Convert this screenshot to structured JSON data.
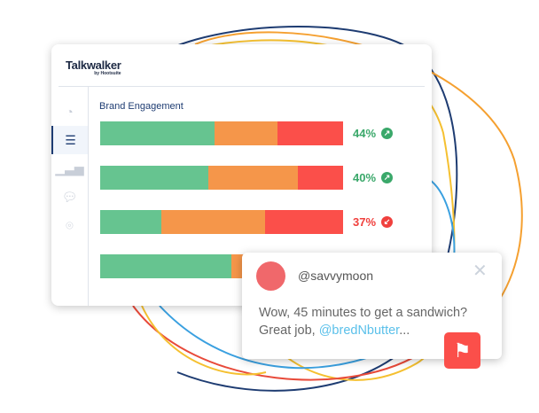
{
  "app": {
    "logo": "Talkwalker",
    "logo_sub": "by Hootsuite"
  },
  "sidebar": {
    "items": [
      {
        "icon": "dashboard-icon"
      },
      {
        "icon": "search-list-icon",
        "active": true
      },
      {
        "icon": "bar-chart-icon"
      },
      {
        "icon": "chat-icon"
      },
      {
        "icon": "location-pin-icon"
      }
    ]
  },
  "main": {
    "title": "Brand Engagement",
    "rows": [
      {
        "positive": 47,
        "neutral": 26,
        "negative": 27,
        "pct": "44%",
        "trend": "up",
        "color": "#3aa86a"
      },
      {
        "positive": 44.5,
        "neutral": 37,
        "negative": 18.5,
        "pct": "40%",
        "trend": "up",
        "color": "#3aa86a"
      },
      {
        "positive": 25,
        "neutral": 43,
        "negative": 32,
        "pct": "37%",
        "trend": "down",
        "color": "#f0403d"
      },
      {
        "positive": 54,
        "neutral": 46,
        "negative": 0,
        "pct": "",
        "trend": ""
      }
    ]
  },
  "colors": {
    "positive": "#66c490",
    "neutral": "#f5964a",
    "negative": "#fb4f4a",
    "accent": "#1e3c72"
  },
  "card": {
    "handle": "@savvymoon",
    "text": "Wow, 45 minutes to get a sandwich? Great job, ",
    "mention": "@bredNbutter",
    "ellipsis": "..."
  }
}
